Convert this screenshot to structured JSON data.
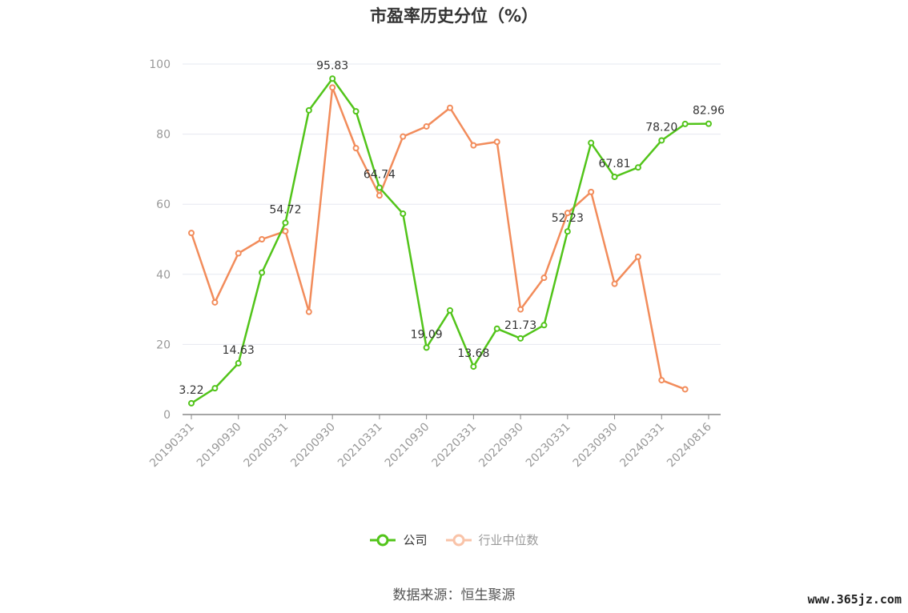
{
  "chart_data": {
    "type": "line",
    "title": "市盈率历史分位（%）",
    "ylim": [
      0,
      100
    ],
    "yticks": [
      "0",
      "20",
      "40",
      "60",
      "80",
      "100"
    ],
    "xticklabels": [
      "20190331",
      "20190930",
      "20200331",
      "20200930",
      "20210331",
      "20210930",
      "20220331",
      "20220930",
      "20230331",
      "20230930",
      "20240331",
      "20240816"
    ],
    "grid": true,
    "legend_position": "bottom",
    "series": [
      {
        "name": "公司",
        "color": "#52c41a",
        "values": [
          3.22,
          7.5,
          14.63,
          40.5,
          54.72,
          86.8,
          95.83,
          86.5,
          64.74,
          57.3,
          19.09,
          29.7,
          13.68,
          24.5,
          21.73,
          25.5,
          52.23,
          77.5,
          67.81,
          70.5,
          78.2,
          82.9,
          82.96
        ],
        "labels": [
          "3.22",
          "",
          "14.63",
          "",
          "54.72",
          "",
          "95.83",
          "",
          "64.74",
          "",
          "19.09",
          "",
          "13.68",
          "",
          "21.73",
          "",
          "52.23",
          "",
          "67.81",
          "",
          "78.20",
          "",
          "82.96"
        ]
      },
      {
        "name": "行业中位数",
        "color": "#f28c5b",
        "values": [
          51.8,
          32.0,
          46.0,
          50.0,
          52.3,
          29.3,
          93.3,
          76.0,
          62.5,
          79.3,
          82.2,
          87.5,
          76.8,
          77.8,
          30.0,
          39.0,
          57.5,
          63.5,
          37.3,
          45.0,
          9.8,
          7.2,
          null
        ]
      }
    ]
  },
  "source": "数据来源：恒生聚源",
  "watermark": "www.365jz.com"
}
